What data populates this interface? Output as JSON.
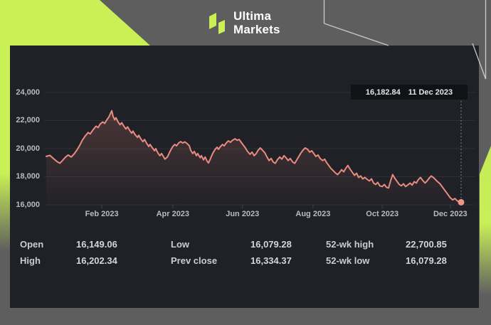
{
  "brand": {
    "name_line1": "Ultima",
    "name_line2": "Markets"
  },
  "colors": {
    "accent_lime": "#c9f055",
    "background_gray": "#5e5e5e",
    "panel_bg": "#1f2126",
    "gridline": "#2d3036",
    "line": "#e98b80",
    "marker": "#ee9589",
    "axis_text": "#b8bbc2",
    "deco_outline": "#d7d8d9"
  },
  "crosshair": {
    "value": "16,182.84",
    "date": "11 Dec 2023"
  },
  "stats": {
    "rows": [
      [
        {
          "label": "Open",
          "value": "16,149.06"
        },
        {
          "label": "Low",
          "value": "16,079.28"
        },
        {
          "label": "52-wk high",
          "value": "22,700.85"
        }
      ],
      [
        {
          "label": "High",
          "value": "16,202.34"
        },
        {
          "label": "Prev close",
          "value": "16,334.37"
        },
        {
          "label": "52-wk low",
          "value": "16,079.28"
        }
      ]
    ]
  },
  "chart_data": {
    "type": "line",
    "title": "",
    "xlabel": "",
    "ylabel": "",
    "x_range": "mid-Dec 2022 to 11 Dec 2023",
    "ylim": [
      16000,
      24000
    ],
    "grid": "horizontal",
    "legend": "none",
    "y_ticks": [
      {
        "value": 24000,
        "label": "24,000"
      },
      {
        "value": 22000,
        "label": "22,000"
      },
      {
        "value": 20000,
        "label": "20,000"
      },
      {
        "value": 18000,
        "label": "18,000"
      },
      {
        "value": 16000,
        "label": "16,000"
      }
    ],
    "x_ticks": [
      {
        "pos": 0.134,
        "label": "Feb 2023"
      },
      {
        "pos": 0.305,
        "label": "Apr 2023"
      },
      {
        "pos": 0.473,
        "label": "Jun 2023"
      },
      {
        "pos": 0.643,
        "label": "Aug 2023"
      },
      {
        "pos": 0.81,
        "label": "Oct 2023"
      },
      {
        "pos": 0.974,
        "label": "Dec 2023"
      }
    ],
    "last_point": {
      "value": 16182.84,
      "date": "11 Dec 2023"
    },
    "points": [
      [
        0.0,
        19450
      ],
      [
        0.009,
        19520
      ],
      [
        0.017,
        19300
      ],
      [
        0.026,
        19080
      ],
      [
        0.033,
        18960
      ],
      [
        0.039,
        19150
      ],
      [
        0.046,
        19380
      ],
      [
        0.053,
        19550
      ],
      [
        0.06,
        19400
      ],
      [
        0.067,
        19620
      ],
      [
        0.074,
        19900
      ],
      [
        0.081,
        20250
      ],
      [
        0.087,
        20600
      ],
      [
        0.094,
        20900
      ],
      [
        0.101,
        21150
      ],
      [
        0.106,
        21050
      ],
      [
        0.113,
        21350
      ],
      [
        0.12,
        21600
      ],
      [
        0.125,
        21500
      ],
      [
        0.13,
        21750
      ],
      [
        0.136,
        21900
      ],
      [
        0.141,
        21800
      ],
      [
        0.146,
        22050
      ],
      [
        0.151,
        22250
      ],
      [
        0.154,
        22450
      ],
      [
        0.158,
        22700
      ],
      [
        0.161,
        22300
      ],
      [
        0.165,
        22050
      ],
      [
        0.168,
        22200
      ],
      [
        0.173,
        21900
      ],
      [
        0.178,
        21700
      ],
      [
        0.182,
        21850
      ],
      [
        0.187,
        21600
      ],
      [
        0.192,
        21400
      ],
      [
        0.196,
        21550
      ],
      [
        0.201,
        21300
      ],
      [
        0.206,
        21100
      ],
      [
        0.209,
        21250
      ],
      [
        0.214,
        21000
      ],
      [
        0.22,
        20800
      ],
      [
        0.223,
        20950
      ],
      [
        0.228,
        20700
      ],
      [
        0.233,
        20500
      ],
      [
        0.237,
        20650
      ],
      [
        0.242,
        20380
      ],
      [
        0.247,
        20150
      ],
      [
        0.25,
        20300
      ],
      [
        0.256,
        20050
      ],
      [
        0.261,
        19850
      ],
      [
        0.264,
        20000
      ],
      [
        0.269,
        19700
      ],
      [
        0.274,
        19500
      ],
      [
        0.278,
        19650
      ],
      [
        0.283,
        19400
      ],
      [
        0.286,
        19250
      ],
      [
        0.292,
        19400
      ],
      [
        0.295,
        19600
      ],
      [
        0.3,
        19900
      ],
      [
        0.305,
        20150
      ],
      [
        0.31,
        20300
      ],
      [
        0.314,
        20200
      ],
      [
        0.319,
        20400
      ],
      [
        0.324,
        20500
      ],
      [
        0.329,
        20400
      ],
      [
        0.334,
        20480
      ],
      [
        0.34,
        20350
      ],
      [
        0.345,
        20200
      ],
      [
        0.348,
        19900
      ],
      [
        0.353,
        19650
      ],
      [
        0.357,
        19800
      ],
      [
        0.362,
        19500
      ],
      [
        0.365,
        19650
      ],
      [
        0.371,
        19350
      ],
      [
        0.374,
        19500
      ],
      [
        0.379,
        19200
      ],
      [
        0.383,
        19400
      ],
      [
        0.388,
        19100
      ],
      [
        0.391,
        18980
      ],
      [
        0.396,
        19300
      ],
      [
        0.401,
        19650
      ],
      [
        0.407,
        19950
      ],
      [
        0.412,
        20100
      ],
      [
        0.415,
        19950
      ],
      [
        0.42,
        20150
      ],
      [
        0.425,
        20300
      ],
      [
        0.429,
        20200
      ],
      [
        0.434,
        20400
      ],
      [
        0.439,
        20550
      ],
      [
        0.444,
        20450
      ],
      [
        0.449,
        20600
      ],
      [
        0.455,
        20700
      ],
      [
        0.46,
        20600
      ],
      [
        0.465,
        20650
      ],
      [
        0.47,
        20450
      ],
      [
        0.475,
        20250
      ],
      [
        0.48,
        20050
      ],
      [
        0.485,
        19800
      ],
      [
        0.491,
        19600
      ],
      [
        0.496,
        19750
      ],
      [
        0.501,
        19500
      ],
      [
        0.506,
        19650
      ],
      [
        0.511,
        19900
      ],
      [
        0.516,
        20050
      ],
      [
        0.521,
        19900
      ],
      [
        0.527,
        19700
      ],
      [
        0.532,
        19400
      ],
      [
        0.537,
        19150
      ],
      [
        0.542,
        19300
      ],
      [
        0.547,
        19050
      ],
      [
        0.552,
        18950
      ],
      [
        0.557,
        19200
      ],
      [
        0.563,
        19400
      ],
      [
        0.568,
        19250
      ],
      [
        0.573,
        19500
      ],
      [
        0.578,
        19350
      ],
      [
        0.583,
        19150
      ],
      [
        0.588,
        19300
      ],
      [
        0.594,
        19050
      ],
      [
        0.599,
        18950
      ],
      [
        0.604,
        19200
      ],
      [
        0.609,
        19450
      ],
      [
        0.614,
        19700
      ],
      [
        0.619,
        19900
      ],
      [
        0.624,
        20050
      ],
      [
        0.63,
        19950
      ],
      [
        0.635,
        19750
      ],
      [
        0.64,
        19850
      ],
      [
        0.645,
        19650
      ],
      [
        0.65,
        19450
      ],
      [
        0.655,
        19550
      ],
      [
        0.66,
        19300
      ],
      [
        0.666,
        19150
      ],
      [
        0.671,
        19250
      ],
      [
        0.676,
        19000
      ],
      [
        0.681,
        18800
      ],
      [
        0.686,
        18600
      ],
      [
        0.691,
        18450
      ],
      [
        0.696,
        18300
      ],
      [
        0.702,
        18150
      ],
      [
        0.707,
        18300
      ],
      [
        0.712,
        18500
      ],
      [
        0.717,
        18350
      ],
      [
        0.722,
        18600
      ],
      [
        0.727,
        18800
      ],
      [
        0.732,
        18550
      ],
      [
        0.738,
        18300
      ],
      [
        0.743,
        18100
      ],
      [
        0.748,
        18250
      ],
      [
        0.753,
        17950
      ],
      [
        0.758,
        18050
      ],
      [
        0.763,
        17850
      ],
      [
        0.768,
        17950
      ],
      [
        0.774,
        17800
      ],
      [
        0.779,
        17700
      ],
      [
        0.784,
        17850
      ],
      [
        0.789,
        17550
      ],
      [
        0.794,
        17450
      ],
      [
        0.799,
        17600
      ],
      [
        0.804,
        17350
      ],
      [
        0.81,
        17300
      ],
      [
        0.815,
        17450
      ],
      [
        0.82,
        17250
      ],
      [
        0.825,
        17200
      ],
      [
        0.83,
        17700
      ],
      [
        0.835,
        18150
      ],
      [
        0.84,
        17900
      ],
      [
        0.846,
        17650
      ],
      [
        0.851,
        17450
      ],
      [
        0.856,
        17350
      ],
      [
        0.861,
        17500
      ],
      [
        0.866,
        17300
      ],
      [
        0.871,
        17400
      ],
      [
        0.877,
        17550
      ],
      [
        0.882,
        17400
      ],
      [
        0.887,
        17650
      ],
      [
        0.892,
        17550
      ],
      [
        0.897,
        17800
      ],
      [
        0.902,
        17950
      ],
      [
        0.907,
        17750
      ],
      [
        0.913,
        17550
      ],
      [
        0.918,
        17700
      ],
      [
        0.923,
        17900
      ],
      [
        0.928,
        18050
      ],
      [
        0.933,
        17950
      ],
      [
        0.938,
        17800
      ],
      [
        0.943,
        17650
      ],
      [
        0.949,
        17500
      ],
      [
        0.954,
        17300
      ],
      [
        0.959,
        17100
      ],
      [
        0.964,
        16900
      ],
      [
        0.969,
        16700
      ],
      [
        0.974,
        16500
      ],
      [
        0.98,
        16350
      ],
      [
        0.985,
        16450
      ],
      [
        0.99,
        16300
      ],
      [
        0.995,
        16200
      ],
      [
        1.0,
        16183
      ]
    ]
  }
}
